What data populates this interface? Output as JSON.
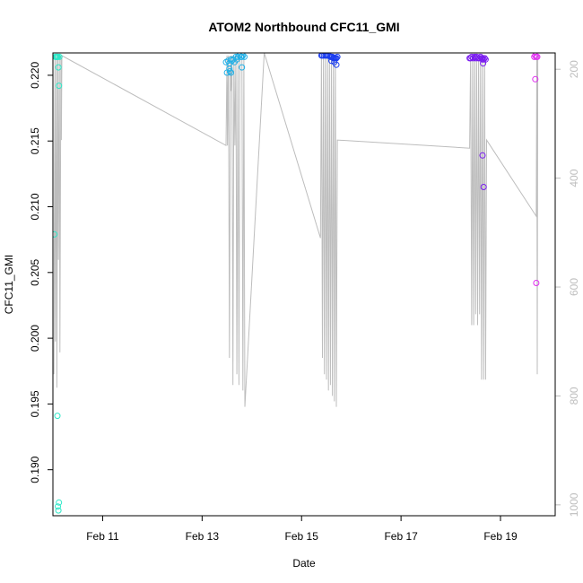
{
  "chart_data": {
    "type": "scatter",
    "title": "ATOM2 Northbound CFC11_GMI",
    "xlabel": "Date",
    "ylabel": "CFC11_GMI",
    "xlim": [
      10.0,
      20.1
    ],
    "ylim": [
      0.1865,
      0.2217
    ],
    "y2lim": [
      1020,
      170
    ],
    "x_ticks": [
      {
        "value": 11,
        "label": "Feb 11"
      },
      {
        "value": 13,
        "label": "Feb 13"
      },
      {
        "value": 15,
        "label": "Feb 15"
      },
      {
        "value": 17,
        "label": "Feb 17"
      },
      {
        "value": 19,
        "label": "Feb 19"
      }
    ],
    "y_ticks": [
      {
        "value": 0.19,
        "label": "0.190"
      },
      {
        "value": 0.195,
        "label": "0.195"
      },
      {
        "value": 0.2,
        "label": "0.200"
      },
      {
        "value": 0.205,
        "label": "0.205"
      },
      {
        "value": 0.21,
        "label": "0.210"
      },
      {
        "value": 0.215,
        "label": "0.215"
      },
      {
        "value": 0.22,
        "label": "0.220"
      }
    ],
    "y2_ticks": [
      {
        "value": 200,
        "label": "200"
      },
      {
        "value": 400,
        "label": "400"
      },
      {
        "value": 600,
        "label": "600"
      },
      {
        "value": 800,
        "label": "800"
      },
      {
        "value": 1000,
        "label": "1000"
      }
    ],
    "colors": {
      "frame": "#000000",
      "pressure_line": "#bdbdbd",
      "right_axis": "#bdbdbd",
      "flight_1": "#2ee8c8",
      "flight_2": "#22b0e6",
      "flight_3": "#1b3df0",
      "flight_4": "#7a1cf0",
      "flight_5": "#e02ef0"
    },
    "series": [
      {
        "name": "flight_1",
        "color_key": "flight_1",
        "x": [
          10.03,
          10.05,
          10.06,
          10.07,
          10.08,
          10.09,
          10.1,
          10.11,
          10.12,
          10.13,
          10.09,
          10.1,
          10.11,
          10.12
        ],
        "y": [
          0.2079,
          0.2214,
          0.2214,
          0.2214,
          0.2214,
          0.2214,
          0.2214,
          0.2206,
          0.2192,
          0.2214,
          0.1941,
          0.1872,
          0.1869,
          0.1875
        ]
      },
      {
        "name": "flight_2",
        "color_key": "flight_2",
        "x": [
          13.48,
          13.52,
          13.55,
          13.56,
          13.58,
          13.6,
          13.62,
          13.65,
          13.68,
          13.7,
          13.72,
          13.75,
          13.78,
          13.8,
          13.82,
          13.85,
          13.8,
          13.58,
          13.55,
          13.5
        ],
        "y": [
          0.221,
          0.2211,
          0.2209,
          0.2203,
          0.2212,
          0.2211,
          0.2212,
          0.221,
          0.2214,
          0.2212,
          0.2214,
          0.2215,
          0.2214,
          0.2214,
          0.2215,
          0.2214,
          0.2206,
          0.2202,
          0.2205,
          0.2202
        ]
      },
      {
        "name": "flight_3",
        "color_key": "flight_3",
        "x": [
          15.4,
          15.42,
          15.45,
          15.48,
          15.5,
          15.52,
          15.55,
          15.58,
          15.6,
          15.62,
          15.64,
          15.66,
          15.68,
          15.7,
          15.72,
          15.6,
          15.66,
          15.7
        ],
        "y": [
          0.2215,
          0.2215,
          0.2215,
          0.2215,
          0.2215,
          0.2215,
          0.2215,
          0.2214,
          0.2214,
          0.2214,
          0.2213,
          0.2213,
          0.2213,
          0.2213,
          0.2214,
          0.2211,
          0.221,
          0.2208
        ]
      },
      {
        "name": "flight_4",
        "color_key": "flight_4",
        "x": [
          18.38,
          18.4,
          18.42,
          18.45,
          18.48,
          18.5,
          18.52,
          18.55,
          18.58,
          18.6,
          18.62,
          18.64,
          18.66,
          18.68,
          18.7,
          18.65,
          18.66,
          18.64,
          18.63
        ],
        "y": [
          0.2213,
          0.2213,
          0.2214,
          0.2213,
          0.2214,
          0.2213,
          0.2214,
          0.2213,
          0.2213,
          0.2214,
          0.2213,
          0.2212,
          0.2212,
          0.2213,
          0.2212,
          0.2209,
          0.2115,
          0.2139,
          0.2213
        ]
      },
      {
        "name": "flight_5",
        "color_key": "flight_5",
        "x": [
          19.68,
          19.7,
          19.72,
          19.74,
          19.7,
          19.72
        ],
        "y": [
          0.2214,
          0.2215,
          0.2214,
          0.2214,
          0.2197,
          0.2042
        ]
      }
    ],
    "pressure_line": {
      "axis": "right",
      "x": [
        10.02,
        10.04,
        10.05,
        10.07,
        10.08,
        10.1,
        10.11,
        10.13,
        10.14,
        10.16,
        10.17,
        10.18,
        13.48,
        13.5,
        13.51,
        13.53,
        13.55,
        13.57,
        13.58,
        13.6,
        13.62,
        13.64,
        13.66,
        13.68,
        13.7,
        13.72,
        13.74,
        13.76,
        13.78,
        13.8,
        13.82,
        13.84,
        13.86,
        14.25,
        15.38,
        15.4,
        15.42,
        15.44,
        15.46,
        15.48,
        15.5,
        15.52,
        15.54,
        15.56,
        15.58,
        15.6,
        15.62,
        15.64,
        15.66,
        15.68,
        15.7,
        15.72,
        18.38,
        18.4,
        18.42,
        18.44,
        18.46,
        18.48,
        18.5,
        18.52,
        18.54,
        18.56,
        18.58,
        18.6,
        18.62,
        18.64,
        18.66,
        18.68,
        18.7,
        18.72,
        19.72,
        19.73,
        19.74,
        19.75
      ],
      "y": [
        760,
        175,
        700,
        175,
        785,
        175,
        550,
        175,
        720,
        175,
        330,
        175,
        340,
        175,
        340,
        175,
        730,
        175,
        240,
        175,
        780,
        175,
        340,
        175,
        760,
        175,
        780,
        175,
        170,
        175,
        790,
        175,
        820,
        170,
        510,
        175,
        730,
        175,
        760,
        175,
        770,
        175,
        790,
        175,
        780,
        175,
        800,
        175,
        810,
        175,
        820,
        330,
        345,
        175,
        670,
        175,
        670,
        175,
        650,
        175,
        670,
        175,
        650,
        175,
        770,
        175,
        770,
        175,
        770,
        330,
        470,
        175,
        760,
        175
      ]
    }
  }
}
